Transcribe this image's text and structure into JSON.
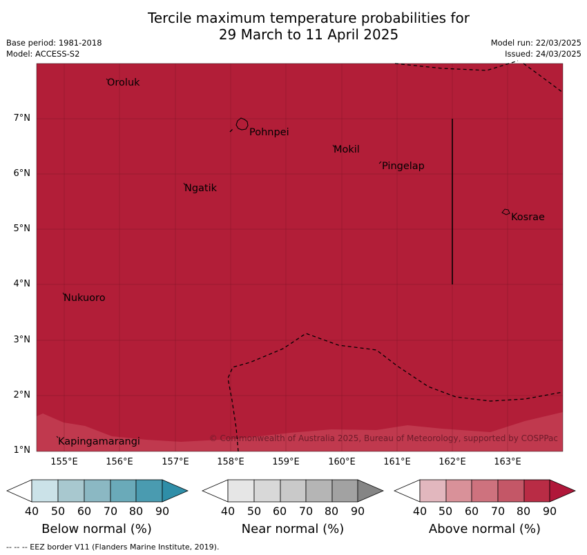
{
  "title_line1": "Tercile maximum temperature probabilities for",
  "title_line2": "29 March to 11 April 2025",
  "meta_left": [
    "Base period: 1981-2018",
    "Model: ACCESS-S2"
  ],
  "meta_right": [
    "Model run: 22/03/2025",
    "Issued: 24/03/2025"
  ],
  "map": {
    "fill_color": "#b21e38",
    "lower_band_color": "#c0394e",
    "lat_ticks": [
      "7°N",
      "6°N",
      "5°N",
      "4°N",
      "3°N",
      "2°N",
      "1°N"
    ],
    "lon_ticks": [
      "155°E",
      "156°E",
      "157°E",
      "158°E",
      "159°E",
      "160°E",
      "161°E",
      "162°E",
      "163°E"
    ],
    "places": [
      "Oroluk",
      "Pohnpei",
      "Mokil",
      "Pingelap",
      "Ngatik",
      "Kosrae",
      "Nukuoro",
      "Kapingamarangi"
    ],
    "copyright": "© Commonwealth of Australia 2025, Bureau of Meteorology, supported by COSPPac"
  },
  "colorbars": [
    {
      "name": "below",
      "title": "Below normal (%)",
      "ticks": [
        "40",
        "50",
        "60",
        "70",
        "80",
        "90"
      ],
      "colors": [
        "#ffffff",
        "#cbe2e8",
        "#a8c8cf",
        "#8bb8c3",
        "#6aaab9",
        "#4a9bb0",
        "#2f8ea8"
      ]
    },
    {
      "name": "near",
      "title": "Near normal (%)",
      "ticks": [
        "40",
        "50",
        "60",
        "70",
        "80",
        "90"
      ],
      "colors": [
        "#ffffff",
        "#e6e6e6",
        "#d8d8d8",
        "#c9c9c9",
        "#b5b5b5",
        "#a2a2a2",
        "#858585"
      ]
    },
    {
      "name": "above",
      "title": "Above normal (%)",
      "ticks": [
        "40",
        "50",
        "60",
        "70",
        "80",
        "90"
      ],
      "colors": [
        "#ffffff",
        "#e2b7be",
        "#d99199",
        "#ce727e",
        "#c45767",
        "#b92c45",
        "#b0183a"
      ]
    }
  ],
  "footer": "--  --  -- EEZ border V11 (Flanders Marine Institute, 2019)."
}
